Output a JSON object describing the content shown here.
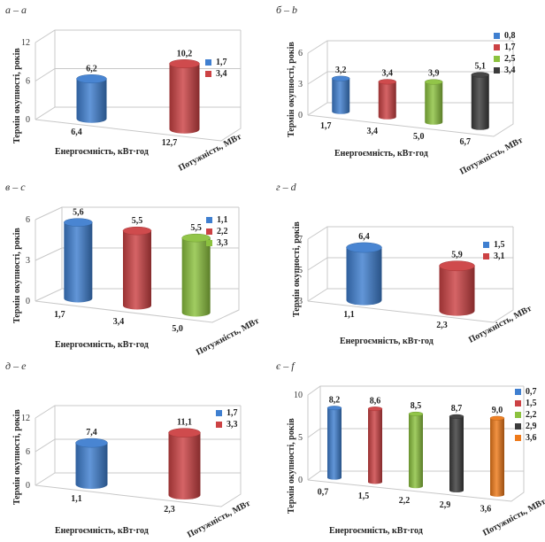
{
  "chart_data": [
    {
      "panel": "а – a",
      "type": "bar",
      "ylabel": "Термін окупності, років",
      "xlabel": "Енергоємність, кВт·год",
      "zlabel": "Потужність, МВт",
      "ylim": [
        0,
        12
      ],
      "yticks": [
        "0",
        "6",
        "12"
      ],
      "series": [
        {
          "name": "1,7",
          "color": "#3f7fd0",
          "category": "6,4",
          "value": 6.2,
          "label": "6,2"
        },
        {
          "name": "3,4",
          "color": "#cc4244",
          "category": "12,7",
          "value": 10.2,
          "label": "10,2"
        }
      ]
    },
    {
      "panel": "б – b",
      "type": "bar",
      "ylabel": "Термін окупності, років",
      "xlabel": "Енергоємність, кВт·год",
      "zlabel": "Потужність, МВт",
      "ylim": [
        0,
        6
      ],
      "yticks": [
        "0",
        "3",
        "6"
      ],
      "series": [
        {
          "name": "0,8",
          "color": "#3f7fd0",
          "category": "1,7",
          "value": 3.2,
          "label": "3,2"
        },
        {
          "name": "1,7",
          "color": "#cc4244",
          "category": "3,4",
          "value": 3.4,
          "label": "3,4"
        },
        {
          "name": "2,5",
          "color": "#8cc23f",
          "category": "5,0",
          "value": 3.9,
          "label": "3,9"
        },
        {
          "name": "3,4",
          "color": "#3c3c3c",
          "category": "6,7",
          "value": 5.1,
          "label": "5,1"
        }
      ]
    },
    {
      "panel": "в – c",
      "type": "bar",
      "ylabel": "Термін окупності, років",
      "xlabel": "Енергоємність, кВт·год",
      "zlabel": "Потужність, МВт",
      "ylim": [
        0,
        6
      ],
      "yticks": [
        "0",
        "3",
        "6"
      ],
      "series": [
        {
          "name": "1,1",
          "color": "#3f7fd0",
          "category": "1,7",
          "value": 5.6,
          "label": "5,6"
        },
        {
          "name": "2,2",
          "color": "#cc4244",
          "category": "3,4",
          "value": 5.5,
          "label": "5,5"
        },
        {
          "name": "3,3",
          "color": "#8cc23f",
          "category": "5,0",
          "value": 5.5,
          "label": "5,5"
        }
      ]
    },
    {
      "panel": "г – d",
      "type": "bar",
      "ylabel": "Термін окупності, років",
      "xlabel": "Енергоємність, кВт·год",
      "zlabel": "Потужність, МВт",
      "ylim": [
        3,
        7
      ],
      "yticks": [
        "3",
        "5",
        "7"
      ],
      "series": [
        {
          "name": "1,5",
          "color": "#3f7fd0",
          "category": "1,1",
          "value": 6.4,
          "label": "6,4"
        },
        {
          "name": "3,1",
          "color": "#cc4244",
          "category": "2,3",
          "value": 5.9,
          "label": "5,9"
        }
      ]
    },
    {
      "panel": "д – e",
      "type": "bar",
      "ylabel": "Термін окупності, років",
      "xlabel": "Енергоємність, кВт·год",
      "zlabel": "Потужність, МВт",
      "ylim": [
        0,
        12
      ],
      "yticks": [
        "0",
        "6",
        "12"
      ],
      "series": [
        {
          "name": "1,7",
          "color": "#3f7fd0",
          "category": "1,1",
          "value": 7.4,
          "label": "7,4"
        },
        {
          "name": "3,3",
          "color": "#cc4244",
          "category": "2,3",
          "value": 11.1,
          "label": "11,1"
        }
      ]
    },
    {
      "panel": "є – f",
      "type": "bar",
      "ylabel": "Термін окупності, років",
      "xlabel": "Енергоємність, кВт·год",
      "zlabel": "Потужність, МВт",
      "ylim": [
        0,
        10
      ],
      "yticks": [
        "0",
        "5",
        "10"
      ],
      "series": [
        {
          "name": "0,7",
          "color": "#3f7fd0",
          "category": "0,7",
          "value": 8.2,
          "label": "8,2"
        },
        {
          "name": "1,5",
          "color": "#cc4244",
          "category": "1,5",
          "value": 8.6,
          "label": "8,6"
        },
        {
          "name": "2,2",
          "color": "#8cc23f",
          "category": "2,2",
          "value": 8.5,
          "label": "8,5"
        },
        {
          "name": "2,9",
          "color": "#3c3c3c",
          "category": "2,9",
          "value": 8.7,
          "label": "8,7"
        },
        {
          "name": "3,6",
          "color": "#ee7a1a",
          "category": "3,6",
          "value": 9.0,
          "label": "9,0"
        }
      ]
    }
  ]
}
